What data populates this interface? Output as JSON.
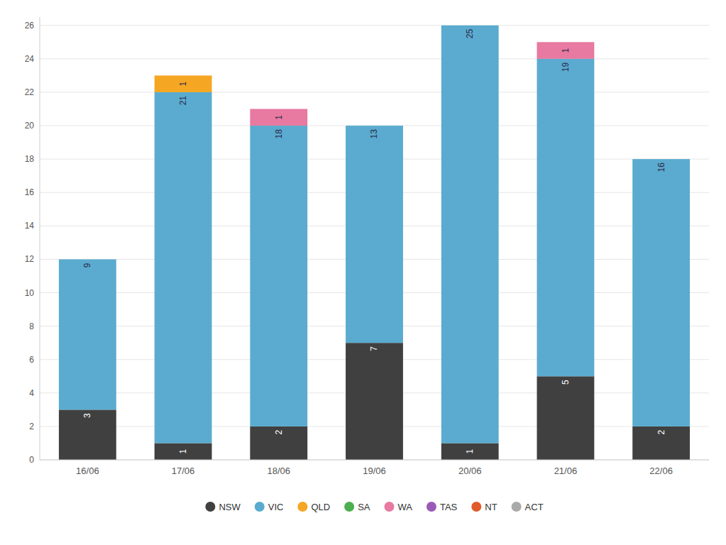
{
  "chart_data": {
    "type": "bar",
    "stacked": true,
    "categories": [
      "16/06",
      "17/06",
      "18/06",
      "19/06",
      "20/06",
      "21/06",
      "22/06"
    ],
    "series": [
      {
        "name": "NSW",
        "color": "#404040",
        "values": [
          3,
          1,
          2,
          7,
          1,
          5,
          2
        ]
      },
      {
        "name": "VIC",
        "color": "#5aabcf",
        "values": [
          9,
          21,
          18,
          13,
          25,
          19,
          16
        ]
      },
      {
        "name": "QLD",
        "color": "#f5a623",
        "values": [
          0,
          1,
          0,
          0,
          0,
          0,
          0
        ]
      },
      {
        "name": "SA",
        "color": "#4caf50",
        "values": [
          0,
          0,
          0,
          0,
          0,
          0,
          0
        ]
      },
      {
        "name": "WA",
        "color": "#e879a0",
        "values": [
          0,
          0,
          1,
          0,
          0,
          1,
          0
        ]
      },
      {
        "name": "TAS",
        "color": "#9b59b6",
        "values": [
          0,
          0,
          0,
          0,
          0,
          0,
          0
        ]
      },
      {
        "name": "NT",
        "color": "#e05a2b",
        "values": [
          0,
          0,
          0,
          0,
          0,
          0,
          0
        ]
      },
      {
        "name": "ACT",
        "color": "#aaaaaa",
        "values": [
          0,
          0,
          0,
          0,
          0,
          0,
          0
        ]
      }
    ],
    "ylim": [
      0,
      26.5
    ],
    "yticks": [
      0,
      2,
      4,
      6,
      8,
      10,
      12,
      14,
      16,
      18,
      20,
      22,
      24,
      26
    ],
    "grid": true,
    "legend": "bottom",
    "data_labels": true
  }
}
